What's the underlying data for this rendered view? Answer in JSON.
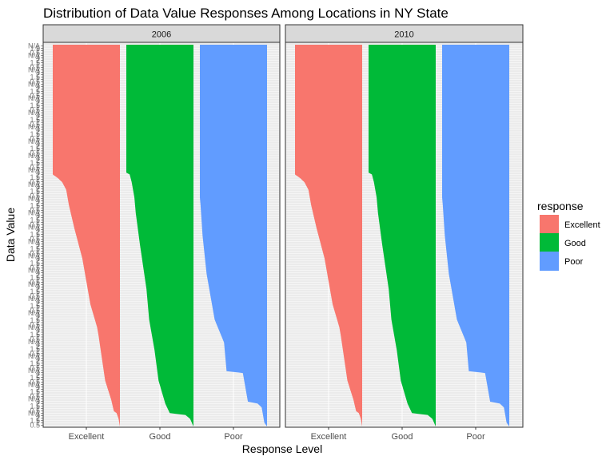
{
  "chart_data": {
    "type": "bar",
    "title": "Distribution of Data Value Responses Among Locations in NY State",
    "xlabel": "Response Level",
    "ylabel": "Data Value",
    "legend": {
      "title": "response",
      "placement": "right",
      "entries": [
        {
          "name": "Excellent",
          "color": "#F8766D"
        },
        {
          "name": "Good",
          "color": "#00BA38"
        },
        {
          "name": "Poor",
          "color": "#619CFF"
        }
      ]
    },
    "categories": [
      "Excellent",
      "Good",
      "Poor"
    ],
    "facets": [
      {
        "label": "2006",
        "profiles": {
          "Excellent": [
            [
              0,
              0.0
            ],
            [
              0.02,
              0.02
            ],
            [
              0.035,
              0.05
            ],
            [
              0.04,
              0.09
            ],
            [
              0.07,
              0.13
            ],
            [
              0.12,
              0.22
            ],
            [
              0.24,
              0.32
            ],
            [
              0.26,
              0.34
            ],
            [
              0.32,
              0.44
            ],
            [
              0.44,
              0.56
            ],
            [
              0.52,
              0.68
            ],
            [
              0.58,
              0.76
            ],
            [
              0.62,
              0.8
            ],
            [
              0.64,
              0.86
            ],
            [
              0.65,
              0.92
            ],
            [
              0.66,
              1.0
            ]
          ],
          "Good": [
            [
              0,
              0.0
            ],
            [
              0.02,
              0.05
            ],
            [
              0.03,
              0.12
            ],
            [
              0.03,
              0.34
            ],
            [
              0.06,
              0.42
            ],
            [
              0.12,
              0.52
            ],
            [
              0.2,
              0.58
            ],
            [
              0.28,
              0.66
            ],
            [
              0.36,
              0.7
            ],
            [
              0.48,
              0.8
            ],
            [
              0.56,
              0.86
            ],
            [
              0.6,
              0.88
            ],
            [
              0.64,
              0.92
            ],
            [
              0.66,
              0.95
            ],
            [
              0.66,
              1.0
            ]
          ],
          "Poor": [
            [
              0,
              0.0
            ],
            [
              0.005,
              0.02
            ],
            [
              0.01,
              0.04
            ],
            [
              0.05,
              0.08
            ],
            [
              0.06,
              0.14
            ],
            [
              0.06,
              0.28
            ],
            [
              0.12,
              0.34
            ],
            [
              0.14,
              0.36
            ],
            [
              0.14,
              0.6
            ],
            [
              0.18,
              0.62
            ],
            [
              0.22,
              0.64
            ],
            [
              0.28,
              0.78
            ],
            [
              0.4,
              0.9
            ],
            [
              0.5,
              0.96
            ],
            [
              0.58,
              0.99
            ],
            [
              0.6,
              1.0
            ]
          ]
        }
      },
      {
        "label": "2010",
        "profiles": {
          "Excellent": [
            [
              0,
              0.0
            ],
            [
              0.02,
              0.02
            ],
            [
              0.035,
              0.05
            ],
            [
              0.04,
              0.09
            ],
            [
              0.07,
              0.13
            ],
            [
              0.12,
              0.22
            ],
            [
              0.24,
              0.32
            ],
            [
              0.26,
              0.34
            ],
            [
              0.32,
              0.44
            ],
            [
              0.44,
              0.56
            ],
            [
              0.52,
              0.68
            ],
            [
              0.58,
              0.76
            ],
            [
              0.62,
              0.8
            ],
            [
              0.64,
              0.86
            ],
            [
              0.65,
              0.92
            ],
            [
              0.66,
              1.0
            ]
          ],
          "Good": [
            [
              0,
              0.0
            ],
            [
              0.02,
              0.05
            ],
            [
              0.03,
              0.12
            ],
            [
              0.03,
              0.34
            ],
            [
              0.06,
              0.42
            ],
            [
              0.12,
              0.52
            ],
            [
              0.2,
              0.58
            ],
            [
              0.28,
              0.66
            ],
            [
              0.36,
              0.7
            ],
            [
              0.48,
              0.8
            ],
            [
              0.56,
              0.86
            ],
            [
              0.6,
              0.88
            ],
            [
              0.64,
              0.92
            ],
            [
              0.66,
              0.95
            ],
            [
              0.66,
              1.0
            ]
          ],
          "Poor": [
            [
              0,
              0.0
            ],
            [
              0.005,
              0.02
            ],
            [
              0.01,
              0.04
            ],
            [
              0.05,
              0.08
            ],
            [
              0.06,
              0.14
            ],
            [
              0.06,
              0.28
            ],
            [
              0.12,
              0.34
            ],
            [
              0.14,
              0.36
            ],
            [
              0.14,
              0.6
            ],
            [
              0.18,
              0.62
            ],
            [
              0.22,
              0.64
            ],
            [
              0.28,
              0.78
            ],
            [
              0.4,
              0.9
            ],
            [
              0.5,
              0.96
            ],
            [
              0.58,
              0.99
            ],
            [
              0.6,
              1.0
            ]
          ]
        }
      }
    ],
    "y_tick_labels": [
      "0.5",
      "1",
      "1.5",
      "2",
      "4",
      "N/A"
    ],
    "grid": true,
    "background": "#EBEBEB"
  }
}
